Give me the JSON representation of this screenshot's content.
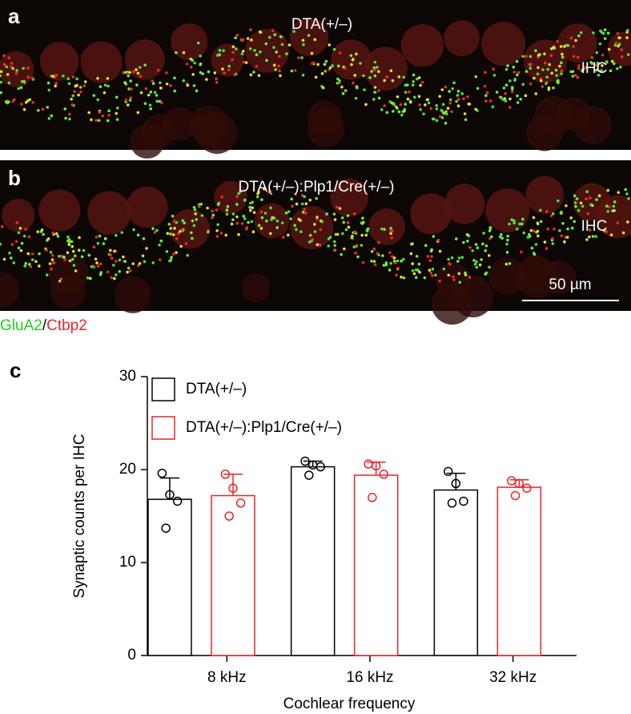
{
  "panel_a": {
    "label": "a",
    "title": "DTA(+/–)",
    "annotation": "IHC"
  },
  "panel_b": {
    "label": "b",
    "title": "DTA(+/–):Plp1/Cre(+/–)",
    "annotation": "IHC",
    "scale_bar": "50 µm"
  },
  "stain_legend": [
    "GluA2",
    "/",
    "Ctbp2"
  ],
  "chart_data": {
    "type": "bar",
    "label": "c",
    "ylabel": "Synaptic counts per IHC",
    "xlabel": "Cochlear frequency",
    "categories": [
      "8 kHz",
      "16 kHz",
      "32 kHz"
    ],
    "ylim": [
      0,
      30
    ],
    "yticks": [
      0,
      10,
      20,
      30
    ],
    "series": [
      {
        "name": "DTA(+/–)",
        "color": "#000000",
        "values": [
          16.8,
          20.3,
          17.8
        ],
        "errors": [
          2.3,
          0.6,
          1.8
        ],
        "points": [
          [
            19.6,
            17.3,
            16.6,
            13.7
          ],
          [
            20.9,
            20.5,
            20.3,
            19.4
          ],
          [
            19.8,
            18.5,
            16.6,
            16.4
          ]
        ]
      },
      {
        "name": "DTA(+/–):Plp1/Cre(+/–)",
        "color": "#e8242a",
        "values": [
          17.2,
          19.4,
          18.1
        ],
        "errors": [
          2.3,
          1.4,
          0.8
        ],
        "points": [
          [
            19.5,
            18.0,
            16.4,
            15.0
          ],
          [
            20.6,
            20.4,
            19.5,
            17.0
          ],
          [
            18.8,
            18.5,
            18.0,
            17.2
          ]
        ]
      }
    ]
  }
}
